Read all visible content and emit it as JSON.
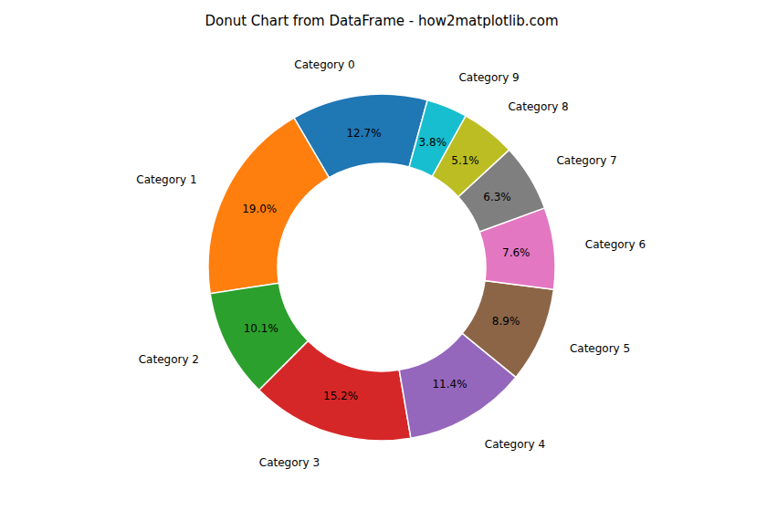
{
  "chart_data": {
    "type": "pie",
    "title": "Donut Chart from DataFrame - how2matplotlib.com",
    "categories": [
      "Category 0",
      "Category 1",
      "Category 2",
      "Category 3",
      "Category 4",
      "Category 5",
      "Category 6",
      "Category 7",
      "Category 8",
      "Category 9"
    ],
    "values": [
      12.7,
      19.0,
      10.1,
      15.2,
      11.4,
      8.9,
      7.6,
      6.3,
      5.1,
      3.8
    ],
    "value_labels": [
      "12.7%",
      "19.0%",
      "10.1%",
      "15.2%",
      "11.4%",
      "8.9%",
      "7.6%",
      "6.3%",
      "5.1%",
      "3.8%"
    ],
    "colors": [
      "#1f77b4",
      "#ff7f0e",
      "#2ca02c",
      "#d62728",
      "#9467bd",
      "#8c6547",
      "#e377c2",
      "#7f7f7f",
      "#bcbd22",
      "#17becf"
    ],
    "data_labels": true
  }
}
